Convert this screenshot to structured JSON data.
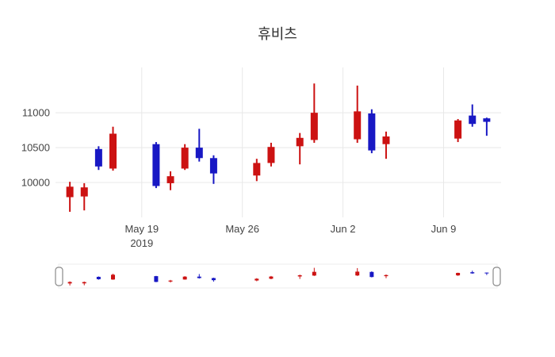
{
  "chart_data": {
    "type": "candlestick",
    "title": "휴비츠",
    "colors": {
      "up": "#cc1212",
      "down": "#1818c4",
      "grid": "#e8e8e8",
      "tick_text": "#444444"
    },
    "y_axis": {
      "ticks": [
        10000,
        10500,
        11000
      ],
      "range": [
        9500,
        11650
      ]
    },
    "x_axis": {
      "start": "2019-05-13",
      "span_days": 31,
      "ticks": [
        {
          "date": "2019-05-19",
          "label": "May 19",
          "sublabel": "2019"
        },
        {
          "date": "2019-05-26",
          "label": "May 26"
        },
        {
          "date": "2019-06-02",
          "label": "Jun 2"
        },
        {
          "date": "2019-06-09",
          "label": "Jun 9"
        }
      ]
    },
    "rangeslider": {
      "enabled": true,
      "y_range": [
        9400,
        11550
      ]
    },
    "candles": [
      {
        "date": "2019-05-14",
        "open": 9790,
        "high": 10010,
        "low": 9580,
        "close": 9940
      },
      {
        "date": "2019-05-15",
        "open": 9800,
        "high": 9990,
        "low": 9600,
        "close": 9930
      },
      {
        "date": "2019-05-16",
        "open": 10480,
        "high": 10520,
        "low": 10180,
        "close": 10230
      },
      {
        "date": "2019-05-17",
        "open": 10200,
        "high": 10800,
        "low": 10170,
        "close": 10700
      },
      {
        "date": "2019-05-20",
        "open": 10550,
        "high": 10580,
        "low": 9920,
        "close": 9950
      },
      {
        "date": "2019-05-21",
        "open": 9990,
        "high": 10160,
        "low": 9890,
        "close": 10090
      },
      {
        "date": "2019-05-22",
        "open": 10200,
        "high": 10550,
        "low": 10180,
        "close": 10500
      },
      {
        "date": "2019-05-23",
        "open": 10500,
        "high": 10770,
        "low": 10300,
        "close": 10350
      },
      {
        "date": "2019-05-24",
        "open": 10350,
        "high": 10390,
        "low": 9980,
        "close": 10130
      },
      {
        "date": "2019-05-27",
        "open": 10100,
        "high": 10340,
        "low": 10020,
        "close": 10280
      },
      {
        "date": "2019-05-28",
        "open": 10280,
        "high": 10570,
        "low": 10230,
        "close": 10510
      },
      {
        "date": "2019-05-30",
        "open": 10520,
        "high": 10710,
        "low": 10260,
        "close": 10640
      },
      {
        "date": "2019-05-31",
        "open": 10610,
        "high": 11420,
        "low": 10570,
        "close": 11000
      },
      {
        "date": "2019-06-03",
        "open": 10620,
        "high": 11390,
        "low": 10570,
        "close": 11020
      },
      {
        "date": "2019-06-04",
        "open": 10990,
        "high": 11050,
        "low": 10420,
        "close": 10460
      },
      {
        "date": "2019-06-05",
        "open": 10550,
        "high": 10730,
        "low": 10340,
        "close": 10660
      },
      {
        "date": "2019-06-10",
        "open": 10630,
        "high": 10910,
        "low": 10580,
        "close": 10890
      },
      {
        "date": "2019-06-11",
        "open": 10960,
        "high": 11120,
        "low": 10800,
        "close": 10840
      },
      {
        "date": "2019-06-12",
        "open": 10920,
        "high": 10930,
        "low": 10670,
        "close": 10870
      }
    ]
  }
}
